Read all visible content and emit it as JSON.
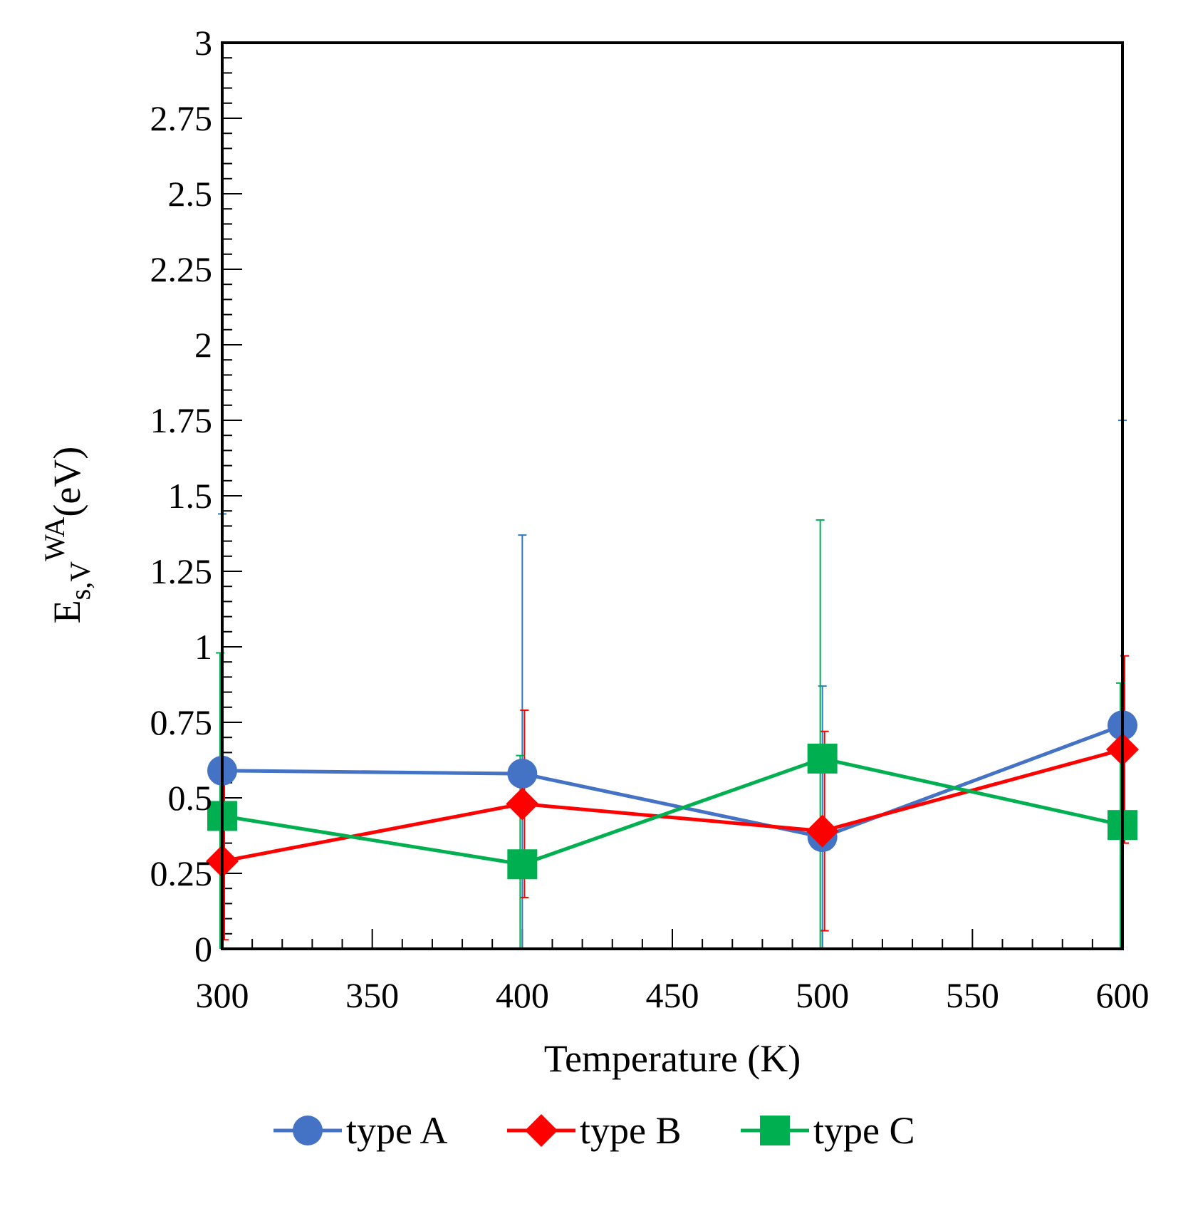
{
  "chart_data": {
    "type": "line",
    "xlabel": "Temperature (K)",
    "ylabel": {
      "base": "E",
      "subscript": "s,V",
      "superscript": "WA",
      "unit": "(eV)"
    },
    "xlim": [
      300,
      600
    ],
    "ylim": [
      0,
      3
    ],
    "x_ticks": [
      "300",
      "350",
      "400",
      "450",
      "500",
      "550",
      "600"
    ],
    "y_ticks": [
      "0",
      "0.25",
      "0.5",
      "0.75",
      "1",
      "1.25",
      "1.5",
      "1.75",
      "2",
      "2.25",
      "2.5",
      "2.75",
      "3"
    ],
    "x": [
      300,
      400,
      500,
      600
    ],
    "legend_position": "bottom",
    "series": [
      {
        "name": "type A",
        "color": "#4472C4",
        "error_color": "#2F7BC4",
        "marker": "circle",
        "values": [
          0.59,
          0.58,
          0.37,
          0.74
        ],
        "error": [
          0.85,
          0.79,
          0.5,
          1.01
        ]
      },
      {
        "name": "type B",
        "color": "#FF0000",
        "error_color": "#FF0000",
        "marker": "diamond",
        "values": [
          0.29,
          0.48,
          0.39,
          0.66
        ],
        "error": [
          0.26,
          0.31,
          0.33,
          0.31
        ]
      },
      {
        "name": "type C",
        "color": "#00B050",
        "error_color": "#00B050",
        "marker": "square",
        "values": [
          0.44,
          0.28,
          0.63,
          0.41
        ],
        "error": [
          0.54,
          0.36,
          0.79,
          0.47
        ]
      }
    ]
  }
}
